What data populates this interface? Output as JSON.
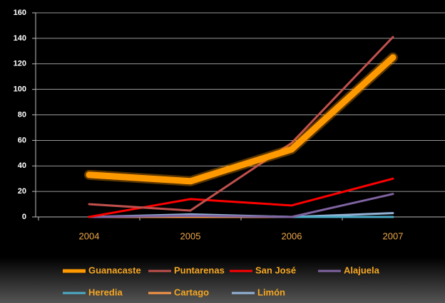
{
  "chart_data": {
    "type": "line",
    "categories": [
      "2004",
      "2005",
      "2006",
      "2007"
    ],
    "series": [
      {
        "name": "Guanacaste",
        "color": "#ff9900",
        "values": [
          33,
          28,
          53,
          125
        ]
      },
      {
        "name": "Puntarenas",
        "color": "#c0504d",
        "values": [
          10,
          5,
          58,
          141
        ]
      },
      {
        "name": "San José",
        "color": "#ff0000",
        "values": [
          0,
          14,
          9,
          30
        ]
      },
      {
        "name": "Alajuela",
        "color": "#8064a2",
        "values": [
          0,
          1,
          0,
          18
        ]
      },
      {
        "name": "Heredia",
        "color": "#4bacc6",
        "values": [
          0,
          1,
          0,
          0
        ]
      },
      {
        "name": "Cartago",
        "color": "#f79646",
        "values": [
          0,
          0,
          0,
          0
        ]
      },
      {
        "name": "Limón",
        "color": "#95b3d7",
        "values": [
          0,
          2,
          0,
          3
        ]
      }
    ],
    "ylim": [
      0,
      160
    ],
    "yticks": [
      0,
      20,
      40,
      60,
      80,
      100,
      120,
      140,
      160
    ],
    "grid": true
  }
}
